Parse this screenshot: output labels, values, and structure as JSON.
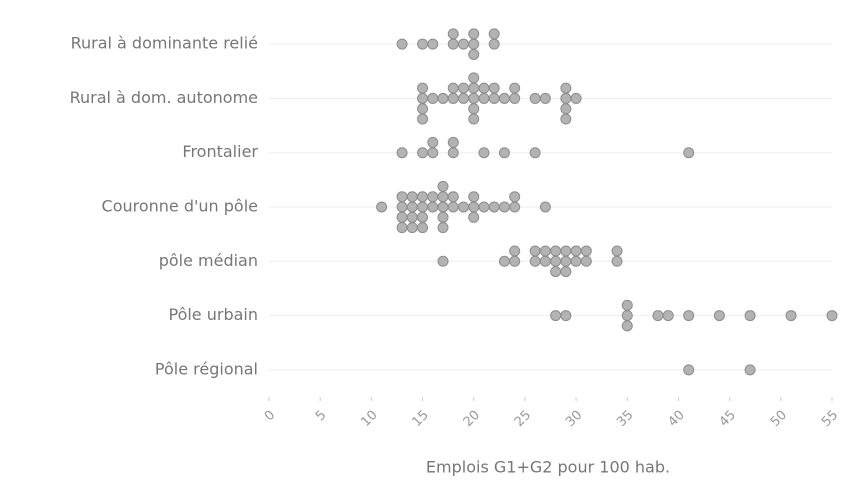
{
  "chart_data": {
    "type": "beeswarm",
    "xlabel": "Emplois G1+G2 pour 100 hab.",
    "categories": [
      "Rural à dominante relié",
      "Rural à dom. autonome",
      "Frontalier",
      "Couronne d'un pôle",
      "pôle médian",
      "Pôle urbain",
      "Pôle régional"
    ],
    "values": [
      [
        13,
        15,
        16,
        18,
        18,
        19,
        20,
        20,
        20,
        22,
        22
      ],
      [
        15,
        15,
        15,
        15,
        16,
        17,
        18,
        18,
        19,
        19,
        20,
        20,
        20,
        20,
        20,
        21,
        21,
        22,
        22,
        23,
        24,
        24,
        26,
        27,
        29,
        29,
        29,
        29,
        30
      ],
      [
        13,
        15,
        16,
        16,
        18,
        18,
        21,
        23,
        26,
        41
      ],
      [
        11,
        13,
        13,
        13,
        13,
        14,
        14,
        14,
        14,
        15,
        15,
        15,
        15,
        16,
        16,
        17,
        17,
        17,
        17,
        17,
        18,
        18,
        19,
        20,
        20,
        20,
        21,
        22,
        23,
        24,
        24,
        27
      ],
      [
        17,
        23,
        24,
        24,
        26,
        26,
        27,
        27,
        28,
        28,
        28,
        29,
        29,
        29,
        30,
        30,
        31,
        31,
        34,
        34
      ],
      [
        28,
        29,
        35,
        35,
        35,
        38,
        39,
        41,
        44,
        47,
        51,
        55
      ],
      [
        41,
        47
      ]
    ],
    "color": "#b3b3b3",
    "xlim": [
      0,
      55
    ],
    "xticks": [
      0,
      5,
      10,
      15,
      20,
      25,
      30,
      35,
      40,
      45,
      50,
      55
    ],
    "grid": true
  }
}
